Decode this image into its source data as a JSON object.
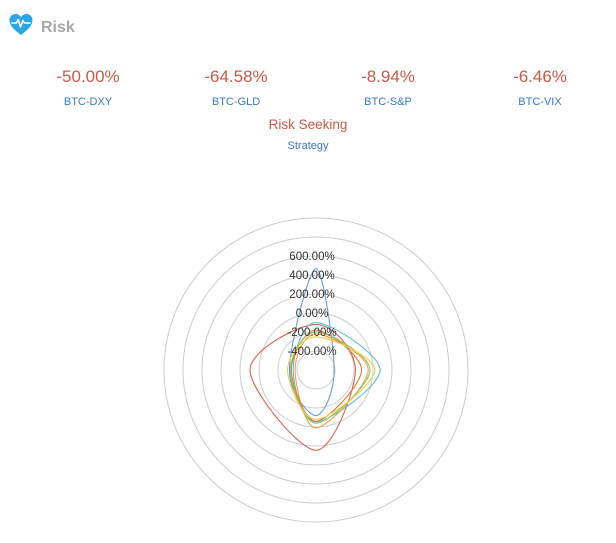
{
  "header": {
    "title": "Risk",
    "icon": "heart-pulse-icon",
    "icon_color": "#2aa6e6"
  },
  "metrics": [
    {
      "value": "-50.00%",
      "label": "BTC-DXY"
    },
    {
      "value": "-64.58%",
      "label": "BTC-GLD"
    },
    {
      "value": "-8.94%",
      "label": "BTC-S&P"
    },
    {
      "value": "-6.46%",
      "label": "BTC-VIX"
    }
  ],
  "profile": {
    "risk_label": "Risk Seeking",
    "strategy_label": "Strategy"
  },
  "colors": {
    "value": "#c85a4b",
    "label": "#3a78c9",
    "grid": "#cccccc"
  },
  "chart_data": {
    "type": "radar",
    "title": "",
    "axis_min": -600,
    "axis_max": 1000,
    "tick_values": [
      -400,
      -200,
      0,
      200,
      400,
      600
    ],
    "tick_labels": [
      "-400.00%",
      "-200.00%",
      "0.00%",
      "200.00%",
      "400.00%",
      "600.00%"
    ],
    "grid": true,
    "axes_count": 4,
    "series": [
      {
        "color": "#6a9fe0",
        "values": [
          468,
          -410,
          -120,
          -320
        ]
      },
      {
        "color": "#d9624f",
        "values": [
          -120,
          -185,
          245,
          95
        ]
      },
      {
        "color": "#5cbfd0",
        "values": [
          -100,
          75,
          -55,
          -360
        ]
      },
      {
        "color": "#f0a442",
        "values": [
          -220,
          -50,
          10,
          -380
        ]
      },
      {
        "color": "#e07b39",
        "values": [
          -180,
          -120,
          -60,
          -340
        ]
      },
      {
        "color": "#8cc36b",
        "values": [
          -200,
          -30,
          -40,
          -330
        ]
      },
      {
        "color": "#f2d04c",
        "values": [
          -250,
          20,
          -80,
          -300
        ]
      }
    ]
  }
}
